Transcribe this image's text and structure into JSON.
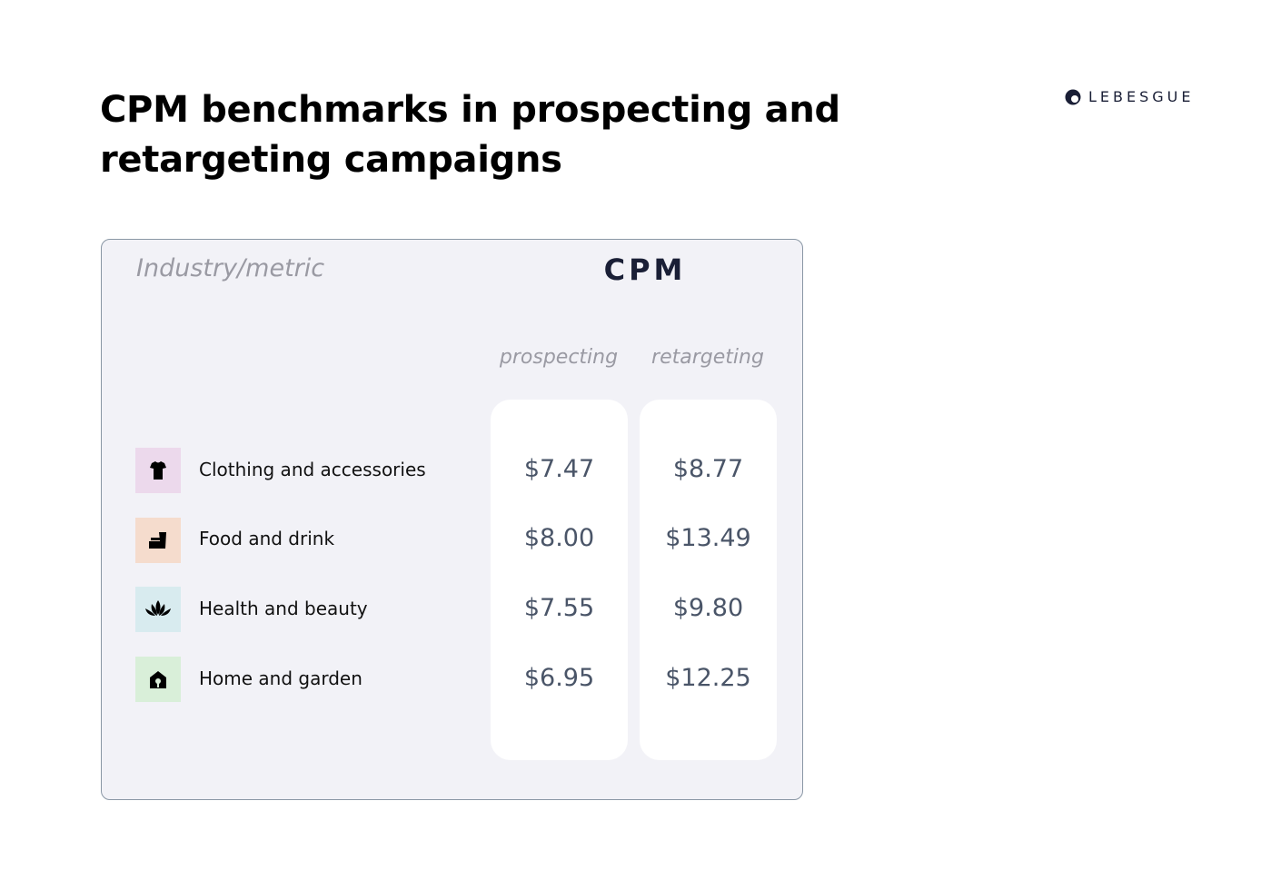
{
  "header": {
    "title": "CPM benchmarks in prospecting and retargeting campaigns",
    "brand": "LEBESGUE"
  },
  "table": {
    "corner_label": "Industry/metric",
    "group_label": "CPM",
    "columns": [
      "prospecting",
      "retargeting"
    ],
    "rows": [
      {
        "label": "Clothing and accessories",
        "values": [
          "$7.47",
          "$8.77"
        ]
      },
      {
        "label": "Food and drink",
        "values": [
          "$8.00",
          "$13.49"
        ]
      },
      {
        "label": "Health and beauty",
        "values": [
          "$7.55",
          "$9.80"
        ]
      },
      {
        "label": "Home and garden",
        "values": [
          "$6.95",
          "$12.25"
        ]
      }
    ]
  }
}
